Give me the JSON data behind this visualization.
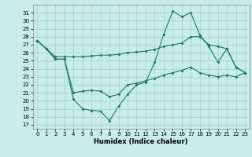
{
  "title": "",
  "xlabel": "Humidex (Indice chaleur)",
  "background_color": "#c8ece8",
  "grid_color": "#a8d8d0",
  "line_color": "#1a7a6e",
  "xlim": [
    -0.5,
    23.5
  ],
  "ylim": [
    16.5,
    32
  ],
  "yticks": [
    17,
    18,
    19,
    20,
    21,
    22,
    23,
    24,
    25,
    26,
    27,
    28,
    29,
    30,
    31
  ],
  "xticks": [
    0,
    1,
    2,
    3,
    4,
    5,
    6,
    7,
    8,
    9,
    10,
    11,
    12,
    13,
    14,
    15,
    16,
    17,
    18,
    19,
    20,
    21,
    22,
    23
  ],
  "line1_x": [
    0,
    1,
    2,
    3,
    4,
    5,
    6,
    7,
    8,
    9,
    10,
    11,
    12,
    13,
    14,
    15,
    16,
    17,
    18,
    19,
    20,
    21,
    22,
    23
  ],
  "line1_y": [
    27.5,
    26.5,
    25.2,
    25.2,
    20.2,
    19.0,
    18.8,
    18.7,
    17.5,
    19.3,
    20.8,
    22.0,
    22.3,
    24.8,
    28.3,
    31.2,
    30.5,
    31.0,
    28.2,
    26.8,
    24.8,
    26.5,
    24.2,
    23.5
  ],
  "line2_x": [
    0,
    1,
    2,
    3,
    4,
    5,
    6,
    7,
    8,
    9,
    10,
    11,
    12,
    13,
    14,
    15,
    16,
    17,
    18,
    19,
    20,
    21,
    22,
    23
  ],
  "line2_y": [
    27.5,
    26.5,
    25.5,
    25.5,
    25.5,
    25.5,
    25.6,
    25.7,
    25.7,
    25.8,
    26.0,
    26.1,
    26.2,
    26.4,
    26.8,
    27.0,
    27.2,
    28.0,
    28.0,
    27.0,
    26.8,
    26.5,
    24.2,
    23.5
  ],
  "line3_x": [
    0,
    1,
    2,
    3,
    4,
    5,
    6,
    7,
    8,
    9,
    10,
    11,
    12,
    13,
    14,
    15,
    16,
    17,
    18,
    19,
    20,
    21,
    22,
    23
  ],
  "line3_y": [
    27.5,
    26.5,
    25.2,
    25.2,
    21.0,
    21.2,
    21.3,
    21.2,
    20.5,
    20.8,
    22.0,
    22.2,
    22.5,
    22.8,
    23.2,
    23.5,
    23.8,
    24.2,
    23.5,
    23.2,
    23.0,
    23.2,
    23.0,
    23.5
  ]
}
